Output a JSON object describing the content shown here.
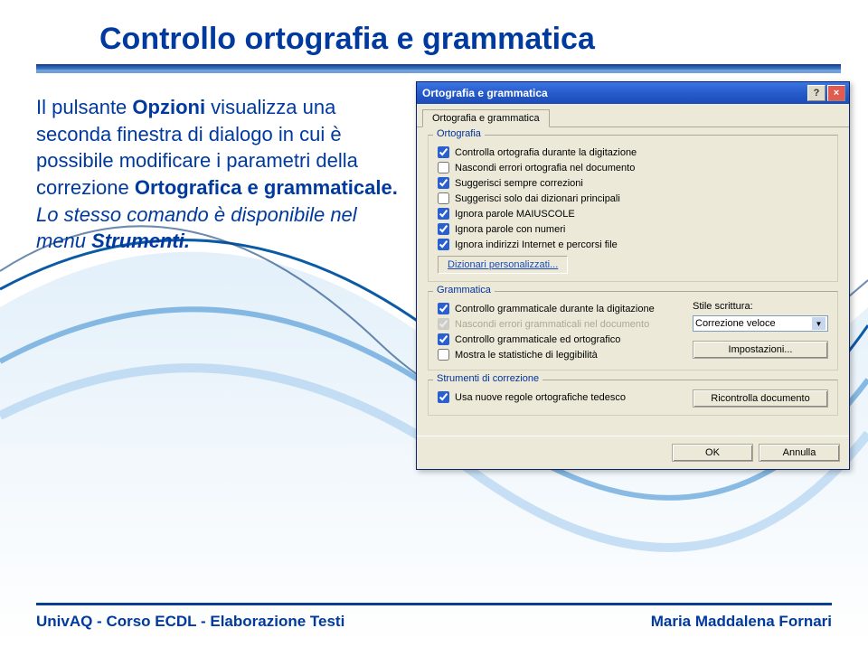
{
  "slide": {
    "title": "Controllo ortografia e grammatica",
    "body_part1": "Il pulsante ",
    "body_bold1": "Opzioni",
    "body_part2": " visualizza una seconda finestra di dialogo in cui è possibile modificare i parametri della correzione ",
    "body_bold2": "Ortografica e grammaticale.",
    "body_part3": "Lo stesso comando è disponibile nel menu ",
    "body_italic": "Strumenti."
  },
  "footer": {
    "left": "UnivAQ - Corso ECDL - Elaborazione Testi",
    "right": "Maria Maddalena Fornari"
  },
  "dialog": {
    "title": "Ortografia e grammatica",
    "help": "?",
    "close": "×",
    "tab": "Ortografia e grammatica",
    "ortografia": {
      "legend": "Ortografia",
      "items": [
        {
          "checked": true,
          "label": "Controlla ortografia durante la digitazione"
        },
        {
          "checked": false,
          "label": "Nascondi errori ortografia nel documento"
        },
        {
          "checked": true,
          "label": "Suggerisci sempre correzioni"
        },
        {
          "checked": false,
          "label": "Suggerisci solo dai dizionari principali"
        },
        {
          "checked": true,
          "label": "Ignora parole MAIUSCOLE"
        },
        {
          "checked": true,
          "label": "Ignora parole con numeri"
        },
        {
          "checked": true,
          "label": "Ignora indirizzi Internet e percorsi file"
        }
      ],
      "dict_btn": "Dizionari personalizzati..."
    },
    "grammatica": {
      "legend": "Grammatica",
      "items": [
        {
          "checked": true,
          "label": "Controllo grammaticale durante la digitazione",
          "dim": false
        },
        {
          "checked": true,
          "label": "Nascondi errori grammaticali nel documento",
          "dim": true
        },
        {
          "checked": true,
          "label": "Controllo grammaticale ed ortografico",
          "dim": false
        },
        {
          "checked": false,
          "label": "Mostra le statistiche di leggibilità",
          "dim": false
        }
      ],
      "stile_label": "Stile scrittura:",
      "stile_value": "Correzione veloce",
      "impostazioni": "Impostazioni..."
    },
    "strumenti": {
      "legend": "Strumenti di correzione",
      "item": {
        "checked": true,
        "label": "Usa nuove regole ortografiche tedesco"
      },
      "ricontrolla": "Ricontrolla documento"
    },
    "ok": "OK",
    "annulla": "Annulla"
  },
  "colors": {
    "title": "#003a9e",
    "link": "#1a4bb8"
  }
}
